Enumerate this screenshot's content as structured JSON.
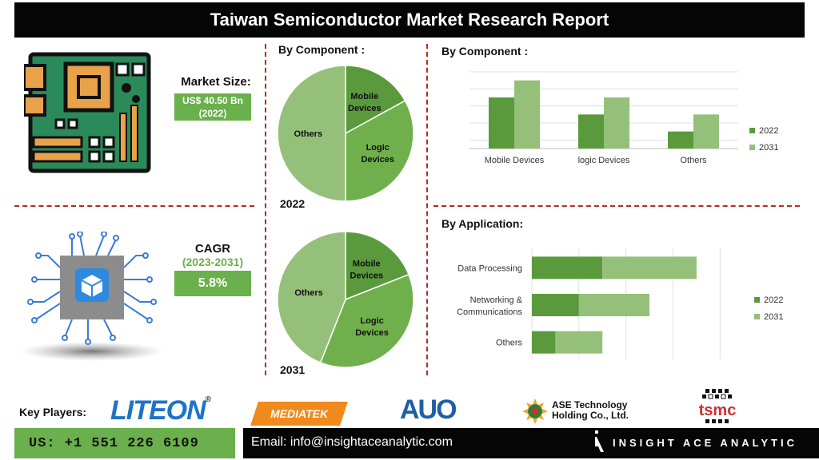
{
  "title": "Taiwan Semiconductor Market Research Report",
  "market_size": {
    "label": "Market Size:",
    "value": "US$ 40.50 Bn",
    "year": "(2022)"
  },
  "cagr": {
    "label": "CAGR",
    "period": "(2023-2031)",
    "value": "5.8%"
  },
  "key_players_label": "Key Players:",
  "players": {
    "liteon": "LITEON",
    "liteon_mark": "®",
    "mediatek": "MEDIATEK",
    "auo": "AUO",
    "ase_line1": "ASE Technology",
    "ase_line2": "Holding Co., Ltd.",
    "tsmc": "tsmc"
  },
  "footer": {
    "phone": "US: +1 551 226 6109",
    "email": "Email: info@insightaceanalytic.com",
    "brand": "INSIGHT ACE ANALYTIC"
  },
  "colors": {
    "dark_green": "#5a9a3c",
    "mid_green": "#6fb04c",
    "light_green": "#95c07a",
    "accent_red": "#b52a22"
  },
  "chart_data": [
    {
      "type": "pie",
      "title": "By Component :",
      "year": "2022",
      "labels": [
        "Mobile Devices",
        "Logic Devices",
        "Others"
      ],
      "values": [
        17,
        33,
        50
      ]
    },
    {
      "type": "pie",
      "year": "2031",
      "labels": [
        "Mobile Devices",
        "Logic Devices",
        "Others"
      ],
      "values": [
        19,
        37,
        44
      ]
    },
    {
      "type": "bar",
      "title": "By Component :",
      "categories": [
        "Mobile Devices",
        "logic Devices",
        "Others"
      ],
      "series": [
        {
          "name": "2022",
          "values": [
            3,
            2,
            1
          ]
        },
        {
          "name": "2031",
          "values": [
            4,
            3,
            2
          ]
        }
      ],
      "ylim": [
        0,
        4.5
      ],
      "grid": true,
      "legend": "right"
    },
    {
      "type": "bar",
      "orientation": "horizontal",
      "title": "By Application:",
      "categories": [
        "Data Processing",
        "Networking & Communications",
        "Others"
      ],
      "category_lines": [
        [
          "Data Processing"
        ],
        [
          "Networking &",
          "Communications"
        ],
        [
          "Others"
        ]
      ],
      "series": [
        {
          "name": "2022",
          "values": [
            3,
            2,
            1
          ]
        },
        {
          "name": "2031",
          "values": [
            4,
            3,
            2
          ]
        }
      ],
      "xlim": [
        0,
        8.5
      ],
      "grid": true,
      "legend": "right"
    }
  ]
}
